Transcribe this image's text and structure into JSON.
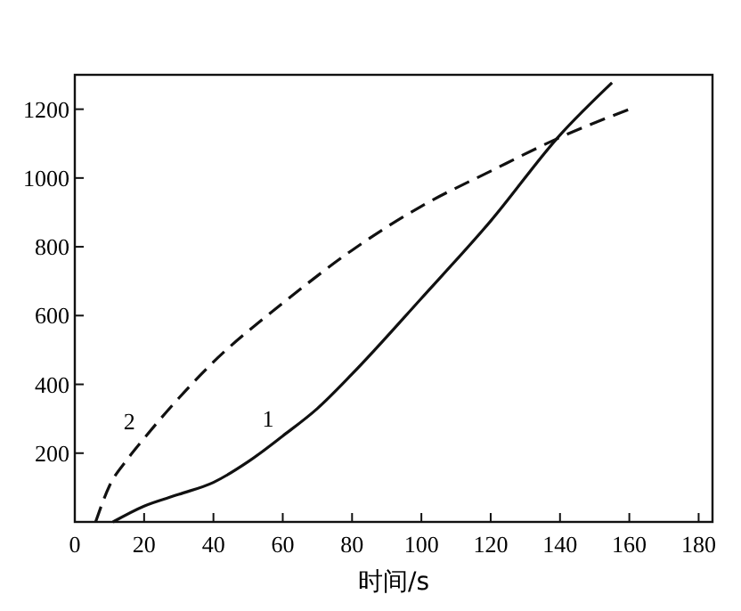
{
  "chart_data": {
    "type": "line",
    "xlabel": "时间/s",
    "xlim": [
      0,
      184
    ],
    "ylim": [
      0,
      1300
    ],
    "xticks": [
      0,
      20,
      40,
      60,
      80,
      100,
      120,
      140,
      160,
      180
    ],
    "yticks": [
      200,
      400,
      600,
      800,
      1000,
      1200
    ],
    "grid": false,
    "series": [
      {
        "name": "1",
        "color": "#111111",
        "line_style": "solid",
        "x": [
          11,
          20,
          30,
          40,
          50,
          60,
          70,
          80,
          100,
          120,
          140,
          155
        ],
        "values": [
          0,
          46,
          80,
          115,
          175,
          250,
          330,
          430,
          650,
          875,
          1125,
          1277
        ]
      },
      {
        "name": "2",
        "color": "#111111",
        "line_style": "dashed",
        "x": [
          6,
          10,
          15,
          20,
          30,
          40,
          60,
          80,
          100,
          120,
          140,
          160
        ],
        "values": [
          0,
          105,
          180,
          243,
          360,
          465,
          636,
          790,
          918,
          1020,
          1118,
          1200
        ]
      }
    ]
  }
}
